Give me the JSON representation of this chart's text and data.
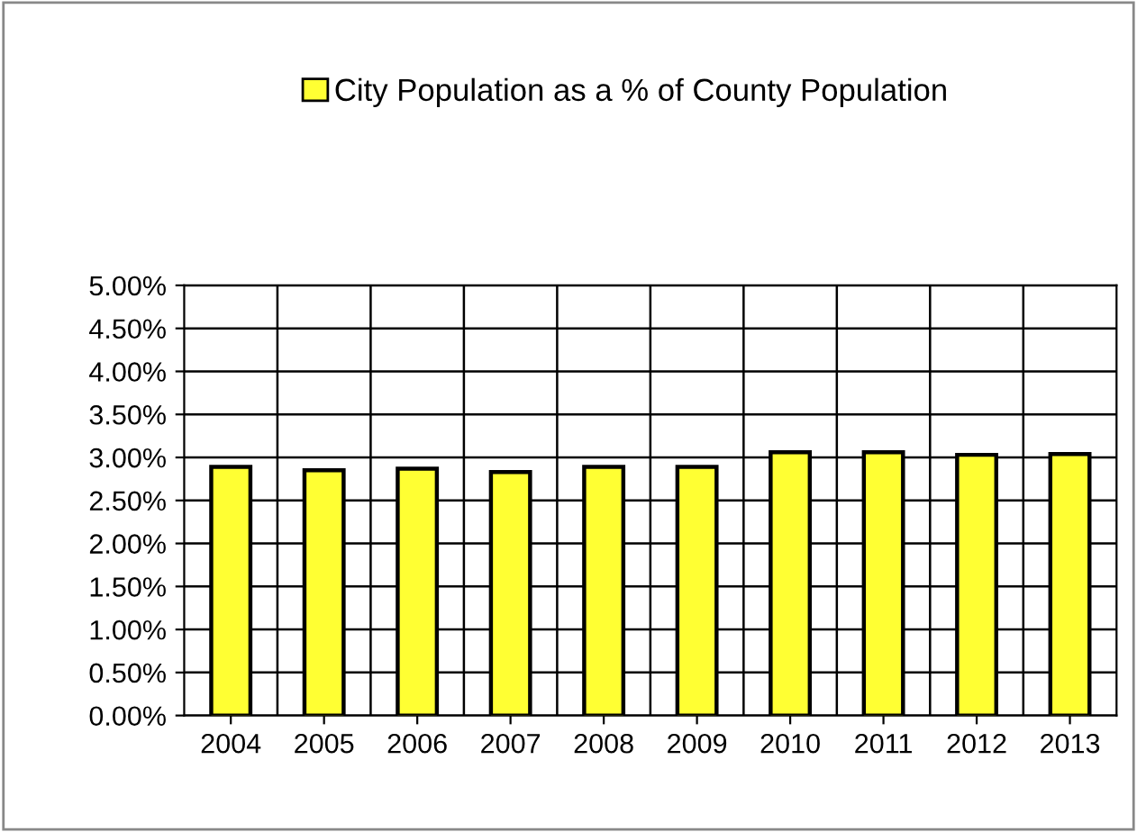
{
  "chart_data": {
    "type": "bar",
    "categories": [
      "2004",
      "2005",
      "2006",
      "2007",
      "2008",
      "2009",
      "2010",
      "2011",
      "2012",
      "2013"
    ],
    "series": [
      {
        "name": "City Population as a % of County Population",
        "color": "#ffff33",
        "values": [
          2.89,
          2.85,
          2.87,
          2.83,
          2.89,
          2.89,
          3.06,
          3.06,
          3.03,
          3.04
        ]
      }
    ],
    "ylim": [
      0,
      5
    ],
    "yticks": [
      {
        "value": 0,
        "label": "0.00%"
      },
      {
        "value": 0.5,
        "label": "0.50%"
      },
      {
        "value": 1,
        "label": "1.00%"
      },
      {
        "value": 1.5,
        "label": "1.50%"
      },
      {
        "value": 2,
        "label": "2.00%"
      },
      {
        "value": 2.5,
        "label": "2.50%"
      },
      {
        "value": 3,
        "label": "3.00%"
      },
      {
        "value": 3.5,
        "label": "3.50%"
      },
      {
        "value": 4,
        "label": "4.00%"
      },
      {
        "value": 4.5,
        "label": "4.50%"
      },
      {
        "value": 5,
        "label": "5.00%"
      }
    ],
    "grid": true,
    "legend": "top"
  }
}
